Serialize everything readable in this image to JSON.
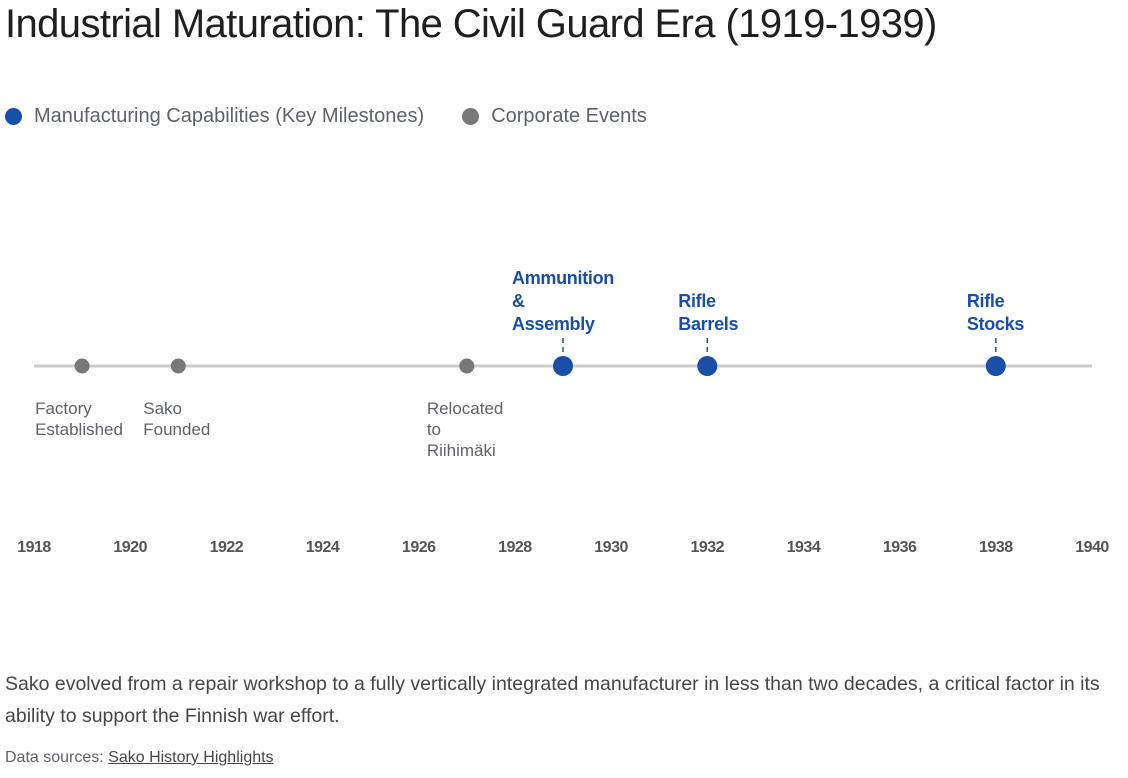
{
  "title": "Industrial Maturation: The Civil Guard Era (1919-1939)",
  "legend": [
    {
      "label": "Manufacturing Capabilities (Key Milestones)",
      "color": "#1a4fa8"
    },
    {
      "label": "Corporate Events",
      "color": "#787878"
    }
  ],
  "chart_data": {
    "type": "scatter",
    "subtype": "timeline",
    "title": "Industrial Maturation: The Civil Guard Era (1919-1939)",
    "xlabel": "",
    "ylabel": "",
    "xlim": [
      1918,
      1940
    ],
    "xticks": [
      1918,
      1920,
      1922,
      1924,
      1926,
      1928,
      1930,
      1932,
      1934,
      1936,
      1938,
      1940
    ],
    "grid": false,
    "legend_position": "top-left",
    "series": [
      {
        "name": "Manufacturing Capabilities (Key Milestones)",
        "color": "#1a4fa8",
        "label_position": "above",
        "points": [
          {
            "year": 1929,
            "label": [
              "Ammunition",
              "&",
              "Assembly"
            ]
          },
          {
            "year": 1932,
            "label": [
              "Rifle",
              "Barrels"
            ]
          },
          {
            "year": 1938,
            "label": [
              "Rifle",
              "Stocks"
            ]
          }
        ]
      },
      {
        "name": "Corporate Events",
        "color": "#787878",
        "label_position": "below",
        "points": [
          {
            "year": 1919,
            "label": [
              "Factory",
              "Established"
            ]
          },
          {
            "year": 1921,
            "label": [
              "Sako",
              "Founded"
            ]
          },
          {
            "year": 1927,
            "label": [
              "Relocated",
              "to",
              "Riihimäki"
            ]
          }
        ]
      }
    ]
  },
  "description": "Sako evolved from a repair workshop to a fully vertically integrated manufacturer in less than two decades, a critical factor in its ability to support the Finnish war effort.",
  "sources": {
    "prefix": "Data sources: ",
    "link_label": "Sako History Highlights"
  }
}
